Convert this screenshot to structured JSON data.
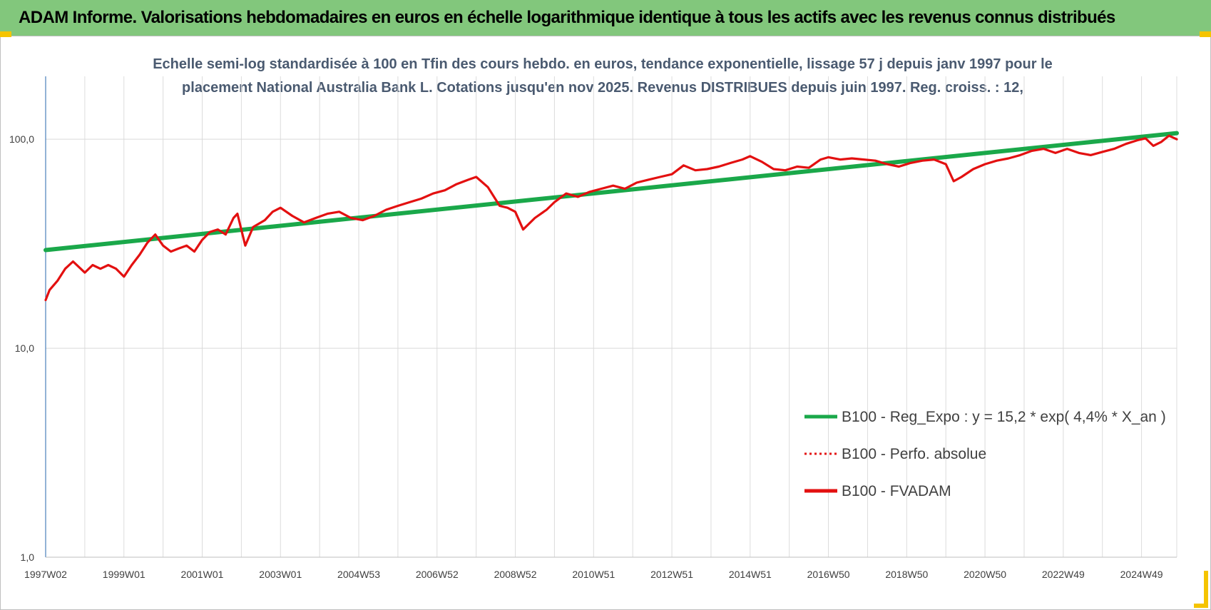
{
  "banner": {
    "title": "ADAM Informe. Valorisations hebdomadaires en euros en échelle logarithmique identique à tous les actifs avec les revenus connus distribués"
  },
  "colors": {
    "banner_bg": "#82c77c",
    "trend": "#1aa84a",
    "fvadam": "#e31010",
    "perfo": "#e31010",
    "corner_accent": "#f5c400"
  },
  "chart_data": {
    "type": "line",
    "title_lines": [
      "Echelle semi-log standardisée à 100 en Tfin des cours hebdo. en euros, tendance exponentielle, lissage 57 j depuis janv 1997 pour le",
      "placement National Australia Bank L. Cotations jusqu'en nov 2025. Revenus DISTRIBUES depuis juin 1997. Reg. croiss. : 12,"
    ],
    "y_scale": "log",
    "ylim": [
      1,
      200
    ],
    "y_ticks": [
      {
        "value": 100,
        "label": "100,0"
      },
      {
        "value": 10,
        "label": "10,0"
      },
      {
        "value": 1,
        "label": "1,0"
      }
    ],
    "xlim": [
      1997.0,
      2025.9
    ],
    "x_ticks": [
      {
        "value": 1997.0,
        "label": "1997W02"
      },
      {
        "value": 1999.0,
        "label": "1999W01"
      },
      {
        "value": 2001.0,
        "label": "2001W01"
      },
      {
        "value": 2003.0,
        "label": "2003W01"
      },
      {
        "value": 2005.0,
        "label": "2004W53"
      },
      {
        "value": 2007.0,
        "label": "2006W52"
      },
      {
        "value": 2009.0,
        "label": "2008W52"
      },
      {
        "value": 2011.0,
        "label": "2010W51"
      },
      {
        "value": 2013.0,
        "label": "2012W51"
      },
      {
        "value": 2015.0,
        "label": "2014W51"
      },
      {
        "value": 2017.0,
        "label": "2016W50"
      },
      {
        "value": 2019.0,
        "label": "2018W50"
      },
      {
        "value": 2021.0,
        "label": "2020W50"
      },
      {
        "value": 2023.0,
        "label": "2022W49"
      },
      {
        "value": 2025.0,
        "label": "2024W49"
      }
    ],
    "grid": true,
    "legend_position": "right",
    "series": [
      {
        "name": "B100 - Reg_Expo : y = 15,2 * exp( 4,4% *  X_an )",
        "style": "solid-thick",
        "color": "#1aa84a",
        "x": [
          1997.0,
          2025.9
        ],
        "y": [
          29.5,
          107
        ]
      },
      {
        "name": "B100 - Perfo. absolue",
        "style": "dotted",
        "color": "#e31010",
        "x": [],
        "y": []
      },
      {
        "name": "B100 - FVADAM",
        "style": "solid",
        "color": "#e31010",
        "x": [
          1997.0,
          1997.1,
          1997.3,
          1997.5,
          1997.7,
          1998.0,
          1998.2,
          1998.4,
          1998.6,
          1998.8,
          1999.0,
          1999.2,
          1999.4,
          1999.6,
          1999.8,
          2000.0,
          2000.2,
          2000.4,
          2000.6,
          2000.8,
          2001.0,
          2001.2,
          2001.4,
          2001.6,
          2001.8,
          2001.9,
          2002.1,
          2002.3,
          2002.6,
          2002.8,
          2003.0,
          2003.3,
          2003.6,
          2003.9,
          2004.2,
          2004.5,
          2004.8,
          2005.1,
          2005.4,
          2005.7,
          2006.0,
          2006.3,
          2006.6,
          2006.9,
          2007.2,
          2007.5,
          2007.8,
          2008.0,
          2008.3,
          2008.6,
          2008.8,
          2009.0,
          2009.2,
          2009.5,
          2009.8,
          2010.0,
          2010.3,
          2010.6,
          2010.9,
          2011.2,
          2011.5,
          2011.8,
          2012.1,
          2012.4,
          2012.7,
          2013.0,
          2013.3,
          2013.6,
          2013.9,
          2014.2,
          2014.5,
          2014.8,
          2015.0,
          2015.3,
          2015.6,
          2015.9,
          2016.2,
          2016.5,
          2016.8,
          2017.0,
          2017.3,
          2017.6,
          2017.9,
          2018.2,
          2018.5,
          2018.8,
          2019.1,
          2019.4,
          2019.7,
          2020.0,
          2020.2,
          2020.4,
          2020.7,
          2021.0,
          2021.3,
          2021.6,
          2021.9,
          2022.2,
          2022.5,
          2022.8,
          2023.1,
          2023.4,
          2023.7,
          2024.0,
          2024.3,
          2024.6,
          2024.9,
          2025.1,
          2025.3,
          2025.5,
          2025.7,
          2025.9
        ],
        "y": [
          17,
          19,
          21,
          24,
          26,
          23,
          25,
          24,
          25,
          24,
          22,
          25,
          28,
          32,
          35,
          31,
          29,
          30,
          31,
          29,
          33,
          36,
          37,
          35,
          42,
          44,
          31,
          38,
          41,
          45,
          47,
          43,
          40,
          42,
          44,
          45,
          42,
          41,
          43,
          46,
          48,
          50,
          52,
          55,
          57,
          61,
          64,
          66,
          59,
          48,
          47,
          45,
          37,
          42,
          46,
          50,
          55,
          53,
          56,
          58,
          60,
          58,
          62,
          64,
          66,
          68,
          75,
          71,
          72,
          74,
          77,
          80,
          83,
          78,
          72,
          71,
          74,
          73,
          80,
          82,
          80,
          81,
          80,
          79,
          76,
          74,
          77,
          79,
          80,
          76,
          63,
          66,
          72,
          76,
          79,
          81,
          84,
          88,
          90,
          86,
          90,
          86,
          84,
          87,
          90,
          95,
          99,
          101,
          93,
          97,
          104,
          100
        ]
      }
    ]
  }
}
